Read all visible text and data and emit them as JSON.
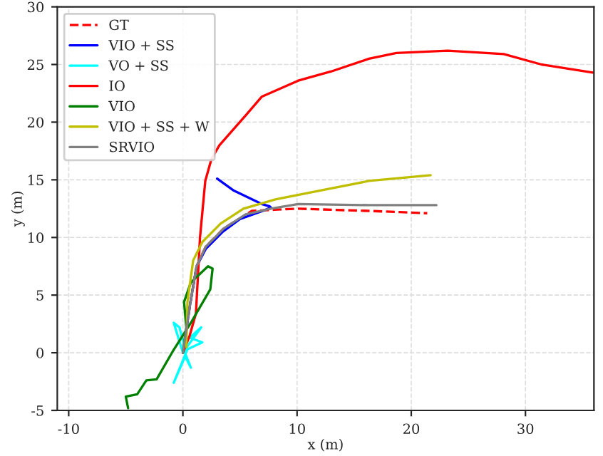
{
  "chart_data": {
    "type": "line",
    "xlabel": "x (m)",
    "ylabel": "y (m)",
    "xlim": [
      -11,
      36
    ],
    "ylim": [
      -5,
      30
    ],
    "xticks": [
      -10,
      0,
      10,
      20,
      30
    ],
    "yticks": [
      -5,
      0,
      5,
      10,
      15,
      20,
      25,
      30
    ],
    "grid": true,
    "legend": "top left",
    "series": [
      {
        "name": "GT",
        "color": "#ff0000",
        "line_style": "dashed",
        "x": [
          0,
          0.6,
          1.2,
          2.0,
          3.6,
          6.05,
          8,
          10.1,
          13,
          16.3,
          19,
          21.4
        ],
        "values": [
          0,
          4,
          7.5,
          9.2,
          10.8,
          12.3,
          12.4,
          12.5,
          12.4,
          12.3,
          12.2,
          12.1
        ]
      },
      {
        "name": "VIO + SS",
        "color": "#0000ff",
        "x": [
          0,
          0.6,
          1.2,
          2.0,
          3.5,
          5,
          7,
          7.7,
          7.6,
          6.9,
          4.4,
          3.0
        ],
        "values": [
          0,
          4,
          7.5,
          9.0,
          10.5,
          11.6,
          12.3,
          12.6,
          12.7,
          12.9,
          14.1,
          15.1
        ]
      },
      {
        "name": "VO + SS",
        "color": "#00ffff",
        "x": [
          0,
          -0.8,
          -0.3,
          0.2,
          1.6,
          0.6,
          1.7,
          0.4,
          -0.8,
          0.2,
          0.7,
          0.1
        ],
        "values": [
          0,
          2.6,
          2.2,
          0.3,
          2.2,
          1.3,
          0.9,
          0.3,
          -2.6,
          -0.3,
          -1.3,
          0.2
        ]
      },
      {
        "name": "IO",
        "color": "#ff0000",
        "x": [
          0,
          0.6,
          1.14,
          1.5,
          1.96,
          2.5,
          3.2,
          5.6,
          6.9,
          10.1,
          13.0,
          16.3,
          18.7,
          23.2,
          28.1,
          31.4,
          35.9
        ],
        "values": [
          0,
          1.5,
          3.4,
          10,
          14.9,
          16.8,
          18.0,
          20.7,
          22.2,
          23.6,
          24.4,
          25.5,
          26.0,
          26.2,
          25.9,
          25.0,
          24.3
        ]
      },
      {
        "name": "VIO",
        "color": "#008000",
        "x": [
          0,
          0.3,
          0.1,
          0.7,
          2.2,
          2.6,
          2.4,
          0.7,
          -0.9,
          -2.3,
          -3.2,
          -4.0,
          -5.0,
          -4.8
        ],
        "values": [
          0,
          2.2,
          4.4,
          6.1,
          7.5,
          7.3,
          5.5,
          2.6,
          0.1,
          -2.3,
          -2.4,
          -3.6,
          -3.8,
          -4.8
        ]
      },
      {
        "name": "VIO + SS + W",
        "color": "#bfbf00",
        "x": [
          0.3,
          0.4,
          0.9,
          1.7,
          3.3,
          5.3,
          8.1,
          12.2,
          16.3,
          21.7
        ],
        "values": [
          0.5,
          4.4,
          8.0,
          9.6,
          11.2,
          12.5,
          13.3,
          14.1,
          14.9,
          15.4
        ]
      },
      {
        "name": "SRVIO",
        "color": "#808080",
        "x": [
          0,
          0.6,
          1.2,
          2.0,
          3.6,
          5.5,
          7.7,
          10.1,
          16.3,
          22.2
        ],
        "values": [
          0,
          4,
          7.5,
          9.2,
          10.8,
          12.0,
          12.5,
          12.9,
          12.8,
          12.8
        ]
      }
    ]
  }
}
